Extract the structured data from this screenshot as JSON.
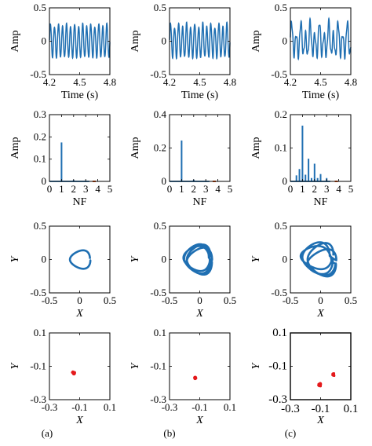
{
  "colors": {
    "blue": "#1f6fb2",
    "red": "#e41a1c",
    "orange": "#d95319",
    "axis": "#000000"
  },
  "captions": [
    "(a)",
    "(b)",
    "(c)"
  ],
  "chart_data": [
    {
      "panel": "a-time",
      "type": "line",
      "xlabel": "Time (s)",
      "ylabel": "Amp",
      "xlim": [
        4.2,
        4.8
      ],
      "ylim": [
        -0.5,
        0.5
      ],
      "xticks": [
        "4.2",
        "4.5",
        "4.8"
      ],
      "yticks": [
        "0.5",
        "0",
        "-0.5"
      ],
      "signal": {
        "amplitude": 0.24,
        "cycles": 15,
        "harmonic": 0.02
      }
    },
    {
      "panel": "b-time",
      "type": "line",
      "xlabel": "Time (s)",
      "ylabel": "Amp",
      "xlim": [
        4.2,
        4.8
      ],
      "ylim": [
        -0.5,
        0.5
      ],
      "xticks": [
        "4.2",
        "4.5",
        "4.8"
      ],
      "yticks": [
        "0.5",
        "0",
        "-0.5"
      ],
      "signal": {
        "amplitude": 0.24,
        "cycles": 15,
        "harmonic": 0.03
      }
    },
    {
      "panel": "c-time",
      "type": "line",
      "xlabel": "Time (s)",
      "ylabel": "Amp",
      "xlim": [
        4.2,
        4.8
      ],
      "ylim": [
        -0.5,
        0.5
      ],
      "xticks": [
        "4.2",
        "4.5",
        "4.8"
      ],
      "yticks": [
        "0.5",
        "0",
        "-0.5"
      ],
      "signal": {
        "amplitude": 0.2,
        "cycles": 13,
        "harmonic": 0.09
      }
    },
    {
      "panel": "a-spectrum",
      "type": "bar",
      "xlabel": "NF",
      "ylabel": "Amp",
      "xlim": [
        0,
        5
      ],
      "ylim": [
        0,
        0.3
      ],
      "xticks": [
        "0",
        "1",
        "2",
        "3",
        "4",
        "5"
      ],
      "yticks": [
        "0.3",
        "0.2",
        "0.1",
        "0"
      ],
      "x": [
        1,
        2,
        3
      ],
      "values": [
        0.175,
        0.006,
        0.004
      ],
      "marker_x": 3.7
    },
    {
      "panel": "b-spectrum",
      "type": "bar",
      "xlabel": "NF",
      "ylabel": "Amp",
      "xlim": [
        0,
        5
      ],
      "ylim": [
        0,
        0.4
      ],
      "xticks": [
        "0",
        "1",
        "2",
        "3",
        "4",
        "5"
      ],
      "yticks": [
        "0.4",
        "0.2",
        "0"
      ],
      "x": [
        1,
        2,
        3
      ],
      "values": [
        0.245,
        0.01,
        0.005
      ],
      "marker_x": 3.7
    },
    {
      "panel": "c-spectrum",
      "type": "bar",
      "xlabel": "NF",
      "ylabel": "Amp",
      "xlim": [
        0,
        5
      ],
      "ylim": [
        0,
        0.2
      ],
      "xticks": [
        "0",
        "1",
        "2",
        "3",
        "4",
        "5"
      ],
      "yticks": [
        "0.2",
        "0.1",
        "0"
      ],
      "x": [
        0.5,
        0.75,
        1,
        1.25,
        1.5,
        1.75,
        2,
        2.25,
        2.5,
        3
      ],
      "values": [
        0.018,
        0.037,
        0.167,
        0.02,
        0.068,
        0.01,
        0.053,
        0.01,
        0.022,
        0.01
      ],
      "marker_x": 3.8
    },
    {
      "panel": "a-phase",
      "type": "line",
      "xlabel": "X",
      "ylabel": "Y",
      "xlim": [
        -0.5,
        0.5
      ],
      "ylim": [
        -0.5,
        0.5
      ],
      "xticks": [
        "-0.5",
        "0",
        "0.5"
      ],
      "yticks": [
        "0.5",
        "0",
        "-0.5"
      ],
      "orbit": {
        "cx": 0.0,
        "cy": 0.0,
        "rx": 0.17,
        "ry": 0.13,
        "loops": 1,
        "jitter": 0.01
      }
    },
    {
      "panel": "b-phase",
      "type": "line",
      "xlabel": "X",
      "ylabel": "Y",
      "xlim": [
        -0.5,
        0.5
      ],
      "ylim": [
        -0.5,
        0.5
      ],
      "xticks": [
        "-0.5",
        "0",
        "0.5"
      ],
      "yticks": [
        "0.5",
        "0",
        "-0.5"
      ],
      "orbit": {
        "cx": -0.03,
        "cy": 0.0,
        "rx": 0.21,
        "ry": 0.2,
        "loops": 4,
        "jitter": 0.03
      }
    },
    {
      "panel": "c-phase",
      "type": "line",
      "xlabel": "X",
      "ylabel": "Y",
      "xlim": [
        -0.5,
        0.5
      ],
      "ylim": [
        -0.5,
        0.5
      ],
      "xticks": [
        "-0.5",
        "0",
        "0.5"
      ],
      "yticks": [
        "0.5",
        "0",
        "-0.5"
      ],
      "orbit": {
        "cx": -0.03,
        "cy": 0.0,
        "rx": 0.24,
        "ry": 0.2,
        "loops": 4,
        "jitter": 0.06
      }
    },
    {
      "panel": "a-poincare",
      "type": "scatter",
      "xlabel": "X",
      "ylabel": "Y",
      "xlim": [
        -0.3,
        0.1
      ],
      "ylim": [
        -0.3,
        0.1
      ],
      "xticks": [
        "-0.3",
        "-0.1",
        "0.1"
      ],
      "yticks": [
        "0.1",
        "-0.1",
        "-0.3"
      ],
      "clusters": [
        {
          "x": -0.14,
          "y": -0.14,
          "spread": 0.012,
          "n": 45
        }
      ]
    },
    {
      "panel": "b-poincare",
      "type": "scatter",
      "xlabel": "X",
      "ylabel": "Y",
      "xlim": [
        -0.3,
        0.1
      ],
      "ylim": [
        -0.3,
        0.1
      ],
      "xticks": [
        "-0.3",
        "-0.1",
        "0.1"
      ],
      "yticks": [
        "0.1",
        "-0.1",
        "-0.3"
      ],
      "clusters": [
        {
          "x": -0.13,
          "y": -0.17,
          "spread": 0.009,
          "n": 35
        }
      ]
    },
    {
      "panel": "c-poincare",
      "type": "scatter",
      "xlabel": "X",
      "ylabel": "Y",
      "xlim": [
        -0.3,
        0.1
      ],
      "ylim": [
        -0.3,
        0.1
      ],
      "xticks": [
        "-0.3",
        "-0.1",
        "0.1"
      ],
      "yticks": [
        "0.1",
        "-0.1",
        "-0.3"
      ],
      "clusters": [
        {
          "x": -0.105,
          "y": -0.21,
          "spread": 0.012,
          "n": 55
        },
        {
          "x": -0.015,
          "y": -0.15,
          "spread": 0.01,
          "n": 40
        }
      ]
    }
  ]
}
